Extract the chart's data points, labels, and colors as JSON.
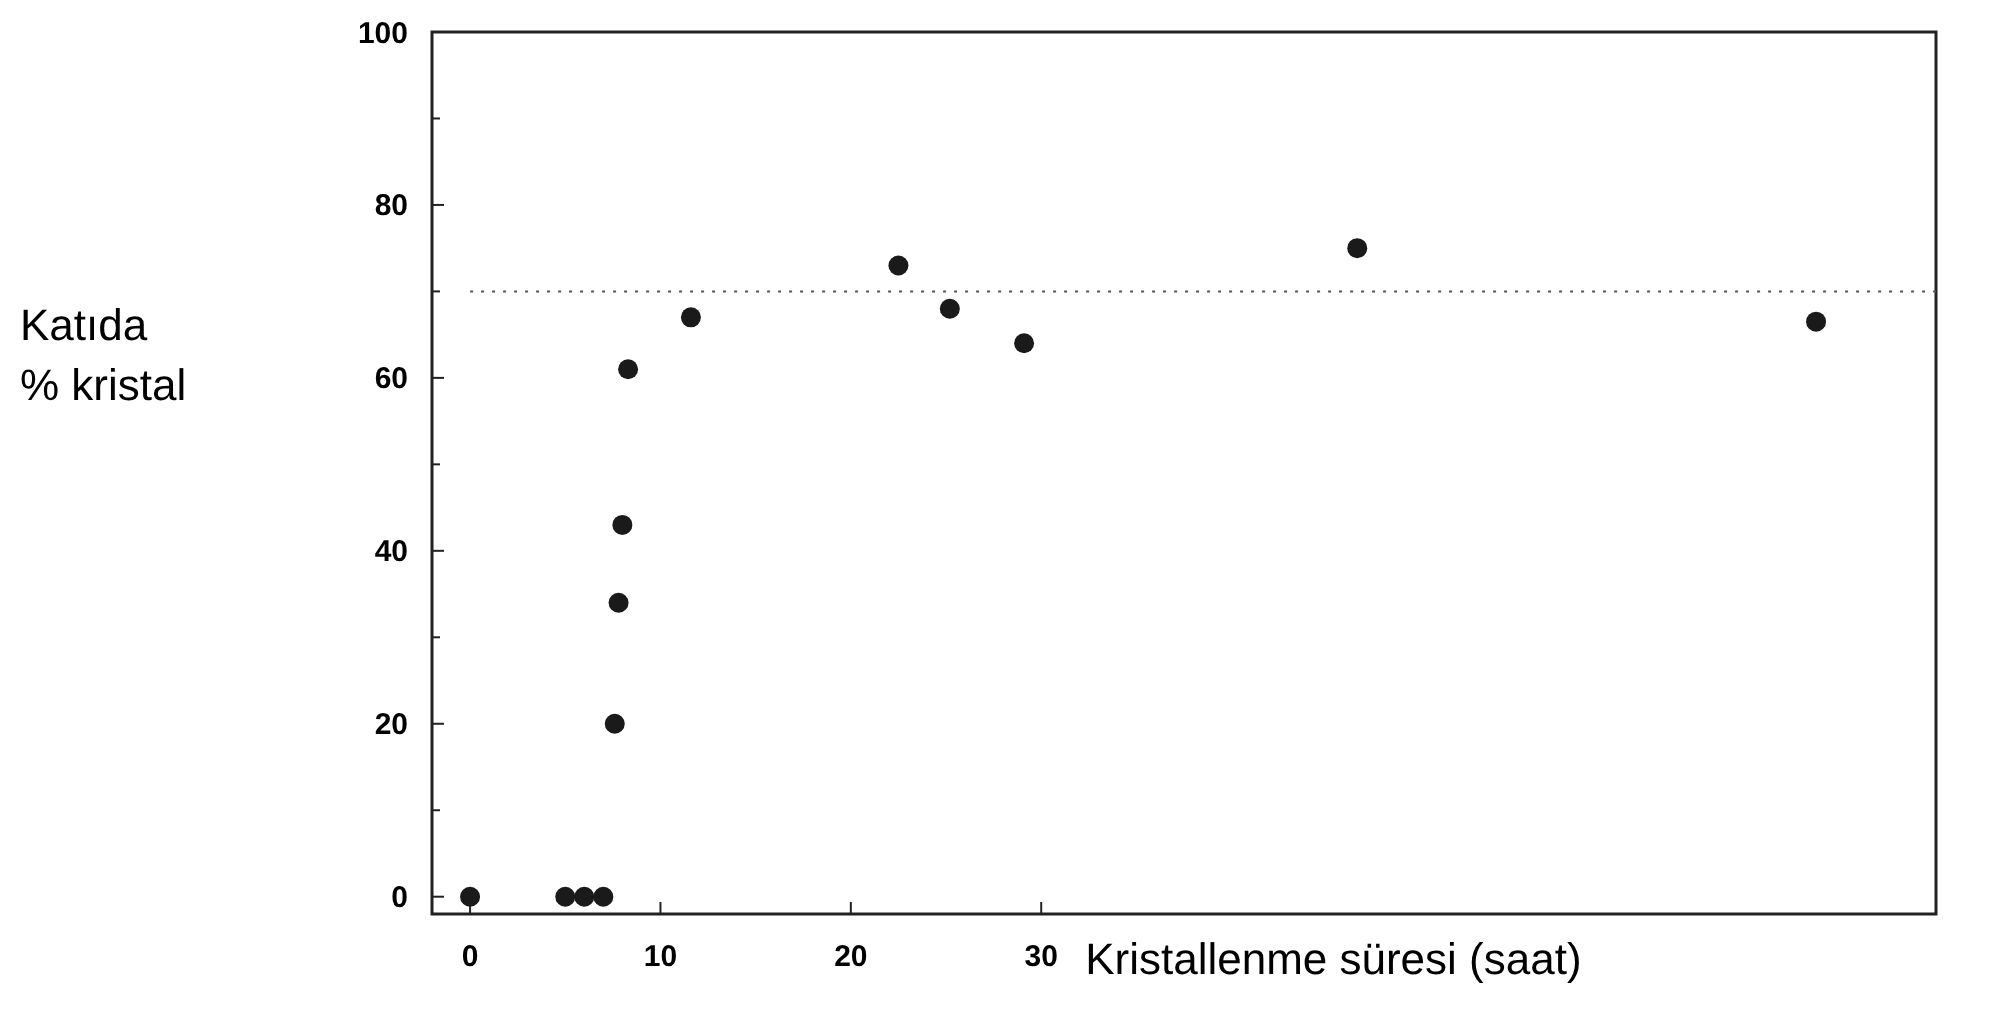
{
  "chart_data": {
    "type": "scatter",
    "xlabel": "Kristallenme süresi (saat)",
    "ylabel": "Katıda\n% kristal",
    "x": [
      0,
      5,
      6,
      7,
      7.6,
      7.8,
      8,
      8.3,
      11.6,
      22.5,
      25.2,
      29.1,
      46.6,
      70.7
    ],
    "values": [
      0,
      0,
      0,
      0,
      20,
      34,
      43,
      61,
      67,
      73,
      68,
      64,
      75,
      66.5
    ],
    "color": "#1a1a1a",
    "marker": "circle",
    "xlim": [
      -2,
      77
    ],
    "xticks": [
      0,
      10,
      20,
      30
    ],
    "ylim": [
      -2,
      100
    ],
    "yticks": [
      0,
      {
        "value": 10,
        "label": null
      },
      20,
      {
        "value": 30,
        "label": null
      },
      40,
      {
        "value": 50,
        "label": null
      },
      60,
      {
        "value": 70,
        "label": null
      },
      80,
      {
        "value": 90,
        "label": null
      },
      100
    ],
    "ref_lines": [
      {
        "axis": "y",
        "value": 70,
        "line_style": "dotted",
        "color": "#555555"
      }
    ],
    "grid": false
  }
}
